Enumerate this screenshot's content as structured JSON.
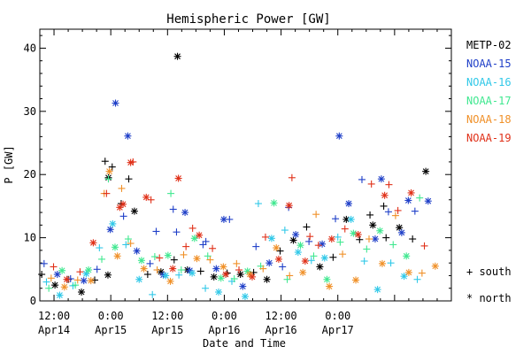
{
  "chart_data": {
    "type": "scatter",
    "title": "Hemispheric Power [GW]",
    "xlabel": "Date and Time",
    "ylabel": "P [GW]",
    "ylim": [
      0,
      43
    ],
    "yticks": [
      0,
      10,
      20,
      30,
      40
    ],
    "xlim_hours": [
      -3,
      84
    ],
    "xticks": [
      {
        "hour": 0,
        "time": "12:00",
        "date": "Apr14"
      },
      {
        "hour": 12,
        "time": "0:00",
        "date": "Apr15"
      },
      {
        "hour": 24,
        "time": "12:00",
        "date": "Apr15"
      },
      {
        "hour": 36,
        "time": "0:00",
        "date": "Apr16"
      },
      {
        "hour": 48,
        "time": "12:00",
        "date": "Apr16"
      },
      {
        "hour": 60,
        "time": "0:00",
        "date": "Apr17"
      }
    ],
    "x_units": "hours since 2011-04-14 12:00 UT",
    "series": [
      {
        "name": "METP-02",
        "color": "#000000"
      },
      {
        "name": "NOAA-15",
        "color": "#1f3fc8"
      },
      {
        "name": "NOAA-16",
        "color": "#30c8e8"
      },
      {
        "name": "NOAA-17",
        "color": "#40e890"
      },
      {
        "name": "NOAA-18",
        "color": "#f09028"
      },
      {
        "name": "NOAA-19",
        "color": "#e03018"
      }
    ],
    "marker_legend": [
      {
        "symbol": "+",
        "label": "south"
      },
      {
        "symbol": "*",
        "label": "north"
      }
    ],
    "points": [
      [
        0,
        -2.6,
        4.2,
        "+"
      ],
      [
        0,
        0.2,
        2.5,
        "*"
      ],
      [
        0,
        3.0,
        3.4,
        "+"
      ],
      [
        0,
        5.8,
        1.4,
        "*"
      ],
      [
        0,
        8.6,
        3.3,
        "+"
      ],
      [
        0,
        11.4,
        4.1,
        "*"
      ],
      [
        0,
        14.2,
        15.4,
        "+"
      ],
      [
        0,
        17.0,
        14.2,
        "*"
      ],
      [
        0,
        19.8,
        4.2,
        "+"
      ],
      [
        0,
        22.6,
        4.6,
        "*"
      ],
      [
        0,
        25.4,
        6.5,
        "+"
      ],
      [
        0,
        28.2,
        4.9,
        "*"
      ],
      [
        0,
        31.0,
        4.7,
        "+"
      ],
      [
        0,
        33.8,
        3.8,
        "*"
      ],
      [
        0,
        36.6,
        4.4,
        "+"
      ],
      [
        0,
        39.4,
        4.2,
        "*"
      ],
      [
        0,
        42.2,
        4.5,
        "+"
      ],
      [
        0,
        45.0,
        3.4,
        "*"
      ],
      [
        0,
        47.8,
        7.9,
        "+"
      ],
      [
        0,
        50.6,
        9.6,
        "*"
      ],
      [
        0,
        53.4,
        11.7,
        "+"
      ],
      [
        0,
        56.2,
        5.4,
        "*"
      ],
      [
        0,
        59.0,
        6.9,
        "+"
      ],
      [
        0,
        61.8,
        12.9,
        "*"
      ],
      [
        0,
        64.6,
        9.7,
        "+"
      ],
      [
        0,
        67.4,
        12.0,
        "*"
      ],
      [
        0,
        70.2,
        10.0,
        "+"
      ],
      [
        0,
        73.0,
        11.6,
        "*"
      ],
      [
        0,
        75.8,
        9.8,
        "+"
      ],
      [
        0,
        78.6,
        20.5,
        "*"
      ],
      [
        0,
        10.8,
        22.1,
        "+"
      ],
      [
        0,
        11.5,
        19.5,
        "*"
      ],
      [
        0,
        12.3,
        21.2,
        "+"
      ],
      [
        0,
        15.8,
        19.3,
        "+"
      ],
      [
        0,
        26.1,
        38.7,
        "*"
      ],
      [
        0,
        66.8,
        13.6,
        "+"
      ],
      [
        0,
        69.7,
        15.0,
        "+"
      ],
      [
        1,
        -2.1,
        5.9,
        "+"
      ],
      [
        1,
        0.7,
        4.2,
        "*"
      ],
      [
        1,
        3.5,
        3.5,
        "+"
      ],
      [
        1,
        6.3,
        3.2,
        "*"
      ],
      [
        1,
        9.1,
        5.0,
        "+"
      ],
      [
        1,
        11.9,
        11.3,
        "*"
      ],
      [
        1,
        14.7,
        13.4,
        "+"
      ],
      [
        1,
        17.5,
        7.9,
        "*"
      ],
      [
        1,
        20.3,
        5.9,
        "+"
      ],
      [
        1,
        23.1,
        4.1,
        "*"
      ],
      [
        1,
        25.9,
        10.9,
        "+"
      ],
      [
        1,
        28.7,
        4.8,
        "*"
      ],
      [
        1,
        31.5,
        8.9,
        "+"
      ],
      [
        1,
        34.3,
        5.1,
        "*"
      ],
      [
        1,
        37.1,
        12.9,
        "+"
      ],
      [
        1,
        39.9,
        2.3,
        "*"
      ],
      [
        1,
        42.7,
        8.6,
        "+"
      ],
      [
        1,
        45.5,
        6.0,
        "*"
      ],
      [
        1,
        48.3,
        5.4,
        "+"
      ],
      [
        1,
        51.1,
        10.5,
        "*"
      ],
      [
        1,
        53.9,
        9.4,
        "+"
      ],
      [
        1,
        56.7,
        9.0,
        "*"
      ],
      [
        1,
        59.5,
        13.0,
        "+"
      ],
      [
        1,
        62.3,
        15.4,
        "*"
      ],
      [
        1,
        65.1,
        19.2,
        "+"
      ],
      [
        1,
        67.9,
        9.8,
        "*"
      ],
      [
        1,
        70.7,
        14.1,
        "+"
      ],
      [
        1,
        73.5,
        10.8,
        "*"
      ],
      [
        1,
        76.3,
        14.2,
        "+"
      ],
      [
        1,
        79.1,
        15.8,
        "*"
      ],
      [
        1,
        13.0,
        31.3,
        "*"
      ],
      [
        1,
        15.6,
        26.1,
        "*"
      ],
      [
        1,
        21.6,
        11.0,
        "+"
      ],
      [
        1,
        25.2,
        14.5,
        "+"
      ],
      [
        1,
        27.7,
        14.0,
        "*"
      ],
      [
        1,
        32.1,
        9.4,
        "+"
      ],
      [
        1,
        35.9,
        12.9,
        "*"
      ],
      [
        1,
        49.6,
        14.8,
        "+"
      ],
      [
        1,
        60.3,
        26.1,
        "*"
      ],
      [
        1,
        69.2,
        19.3,
        "*"
      ],
      [
        1,
        74.9,
        15.9,
        "*"
      ],
      [
        2,
        -1.6,
        3.0,
        "+"
      ],
      [
        2,
        1.2,
        0.9,
        "*"
      ],
      [
        2,
        4.0,
        2.4,
        "+"
      ],
      [
        2,
        6.8,
        4.3,
        "*"
      ],
      [
        2,
        9.6,
        8.4,
        "+"
      ],
      [
        2,
        12.4,
        12.2,
        "*"
      ],
      [
        2,
        15.2,
        8.9,
        "+"
      ],
      [
        2,
        18.0,
        3.4,
        "*"
      ],
      [
        2,
        20.8,
        1.0,
        "+"
      ],
      [
        2,
        23.6,
        4.0,
        "*"
      ],
      [
        2,
        26.4,
        4.1,
        "+"
      ],
      [
        2,
        29.2,
        4.4,
        "*"
      ],
      [
        2,
        32.0,
        2.0,
        "+"
      ],
      [
        2,
        34.8,
        1.4,
        "*"
      ],
      [
        2,
        37.6,
        3.1,
        "+"
      ],
      [
        2,
        40.4,
        0.7,
        "*"
      ],
      [
        2,
        43.2,
        15.4,
        "+"
      ],
      [
        2,
        46.0,
        9.9,
        "*"
      ],
      [
        2,
        48.8,
        11.2,
        "+"
      ],
      [
        2,
        51.6,
        7.7,
        "*"
      ],
      [
        2,
        54.4,
        6.4,
        "+"
      ],
      [
        2,
        57.2,
        6.8,
        "*"
      ],
      [
        2,
        60.0,
        10.1,
        "+"
      ],
      [
        2,
        62.8,
        12.9,
        "*"
      ],
      [
        2,
        65.6,
        6.3,
        "+"
      ],
      [
        2,
        68.4,
        1.8,
        "*"
      ],
      [
        2,
        71.2,
        6.0,
        "+"
      ],
      [
        2,
        74.0,
        3.9,
        "*"
      ],
      [
        2,
        76.8,
        3.4,
        "+"
      ],
      [
        3,
        -1.1,
        2.0,
        "+"
      ],
      [
        3,
        1.7,
        4.8,
        "*"
      ],
      [
        3,
        4.5,
        2.5,
        "+"
      ],
      [
        3,
        7.3,
        4.9,
        "*"
      ],
      [
        3,
        10.1,
        6.6,
        "+"
      ],
      [
        3,
        12.9,
        8.5,
        "*"
      ],
      [
        3,
        15.7,
        9.8,
        "+"
      ],
      [
        3,
        18.5,
        6.4,
        "*"
      ],
      [
        3,
        21.3,
        7.0,
        "+"
      ],
      [
        3,
        24.1,
        7.2,
        "*"
      ],
      [
        3,
        26.9,
        4.9,
        "+"
      ],
      [
        3,
        29.7,
        9.9,
        "*"
      ],
      [
        3,
        32.5,
        7.1,
        "+"
      ],
      [
        3,
        35.3,
        3.6,
        "*"
      ],
      [
        3,
        38.1,
        3.5,
        "+"
      ],
      [
        3,
        40.9,
        4.7,
        "*"
      ],
      [
        3,
        43.7,
        5.5,
        "+"
      ],
      [
        3,
        46.5,
        15.5,
        "*"
      ],
      [
        3,
        49.3,
        3.4,
        "+"
      ],
      [
        3,
        52.1,
        8.8,
        "*"
      ],
      [
        3,
        54.9,
        7.1,
        "+"
      ],
      [
        3,
        57.7,
        3.4,
        "*"
      ],
      [
        3,
        60.5,
        9.3,
        "+"
      ],
      [
        3,
        63.3,
        10.7,
        "*"
      ],
      [
        3,
        66.1,
        8.2,
        "+"
      ],
      [
        3,
        68.9,
        11.1,
        "*"
      ],
      [
        3,
        71.7,
        8.9,
        "+"
      ],
      [
        3,
        74.5,
        7.1,
        "*"
      ],
      [
        3,
        77.3,
        16.3,
        "+"
      ],
      [
        3,
        11.5,
        19.3,
        "+"
      ],
      [
        3,
        24.7,
        17.0,
        "+"
      ],
      [
        4,
        -0.6,
        3.6,
        "+"
      ],
      [
        4,
        2.2,
        2.2,
        "*"
      ],
      [
        4,
        5.0,
        3.3,
        "+"
      ],
      [
        4,
        7.8,
        3.2,
        "*"
      ],
      [
        4,
        10.6,
        17.0,
        "+"
      ],
      [
        4,
        13.4,
        7.1,
        "*"
      ],
      [
        4,
        16.2,
        9.1,
        "+"
      ],
      [
        4,
        19.0,
        5.1,
        "*"
      ],
      [
        4,
        21.8,
        4.9,
        "+"
      ],
      [
        4,
        24.6,
        3.1,
        "*"
      ],
      [
        4,
        27.4,
        7.3,
        "+"
      ],
      [
        4,
        30.2,
        6.7,
        "*"
      ],
      [
        4,
        33.0,
        6.5,
        "+"
      ],
      [
        4,
        35.8,
        5.4,
        "*"
      ],
      [
        4,
        38.6,
        5.9,
        "+"
      ],
      [
        4,
        41.4,
        4.2,
        "*"
      ],
      [
        4,
        44.2,
        5.1,
        "+"
      ],
      [
        4,
        47.0,
        8.4,
        "*"
      ],
      [
        4,
        49.8,
        4.0,
        "+"
      ],
      [
        4,
        52.6,
        4.5,
        "*"
      ],
      [
        4,
        55.4,
        13.7,
        "+"
      ],
      [
        4,
        58.2,
        2.3,
        "*"
      ],
      [
        4,
        61.0,
        7.4,
        "+"
      ],
      [
        4,
        63.8,
        3.3,
        "*"
      ],
      [
        4,
        66.6,
        9.8,
        "+"
      ],
      [
        4,
        69.4,
        5.9,
        "*"
      ],
      [
        4,
        72.2,
        13.5,
        "+"
      ],
      [
        4,
        75.0,
        4.5,
        "*"
      ],
      [
        4,
        77.8,
        4.4,
        "+"
      ],
      [
        4,
        80.6,
        5.5,
        "*"
      ],
      [
        4,
        11.7,
        20.5,
        "*"
      ],
      [
        4,
        14.3,
        17.8,
        "+"
      ],
      [
        5,
        -0.1,
        5.4,
        "+"
      ],
      [
        5,
        2.7,
        3.4,
        "*"
      ],
      [
        5,
        5.5,
        4.6,
        "+"
      ],
      [
        5,
        8.3,
        9.2,
        "*"
      ],
      [
        5,
        11.1,
        17.0,
        "+"
      ],
      [
        5,
        13.9,
        14.8,
        "*"
      ],
      [
        5,
        16.7,
        22.0,
        "+"
      ],
      [
        5,
        19.5,
        16.4,
        "*"
      ],
      [
        5,
        22.3,
        6.8,
        "+"
      ],
      [
        5,
        25.1,
        5.1,
        "*"
      ],
      [
        5,
        27.9,
        8.6,
        "+"
      ],
      [
        5,
        30.7,
        10.4,
        "*"
      ],
      [
        5,
        33.5,
        8.3,
        "+"
      ],
      [
        5,
        36.3,
        4.2,
        "*"
      ],
      [
        5,
        39.1,
        4.9,
        "+"
      ],
      [
        5,
        41.9,
        3.8,
        "*"
      ],
      [
        5,
        44.7,
        10.1,
        "+"
      ],
      [
        5,
        47.5,
        6.6,
        "*"
      ],
      [
        5,
        50.3,
        19.5,
        "+"
      ],
      [
        5,
        53.1,
        6.3,
        "*"
      ],
      [
        5,
        55.9,
        8.8,
        "+"
      ],
      [
        5,
        58.7,
        9.8,
        "*"
      ],
      [
        5,
        61.5,
        11.4,
        "+"
      ],
      [
        5,
        64.3,
        10.5,
        "*"
      ],
      [
        5,
        67.1,
        18.5,
        "+"
      ],
      [
        5,
        69.9,
        16.7,
        "*"
      ],
      [
        5,
        72.7,
        14.3,
        "+"
      ],
      [
        5,
        75.5,
        17.1,
        "*"
      ],
      [
        5,
        78.3,
        8.7,
        "+"
      ],
      [
        5,
        14.6,
        15.3,
        "*"
      ],
      [
        5,
        16.2,
        21.9,
        "*"
      ],
      [
        5,
        20.5,
        16.0,
        "+"
      ],
      [
        5,
        26.3,
        19.4,
        "*"
      ],
      [
        5,
        29.3,
        11.5,
        "+"
      ],
      [
        5,
        49.7,
        15.1,
        "*"
      ],
      [
        5,
        54.1,
        10.2,
        "+"
      ],
      [
        5,
        70.8,
        18.4,
        "+"
      ]
    ]
  }
}
